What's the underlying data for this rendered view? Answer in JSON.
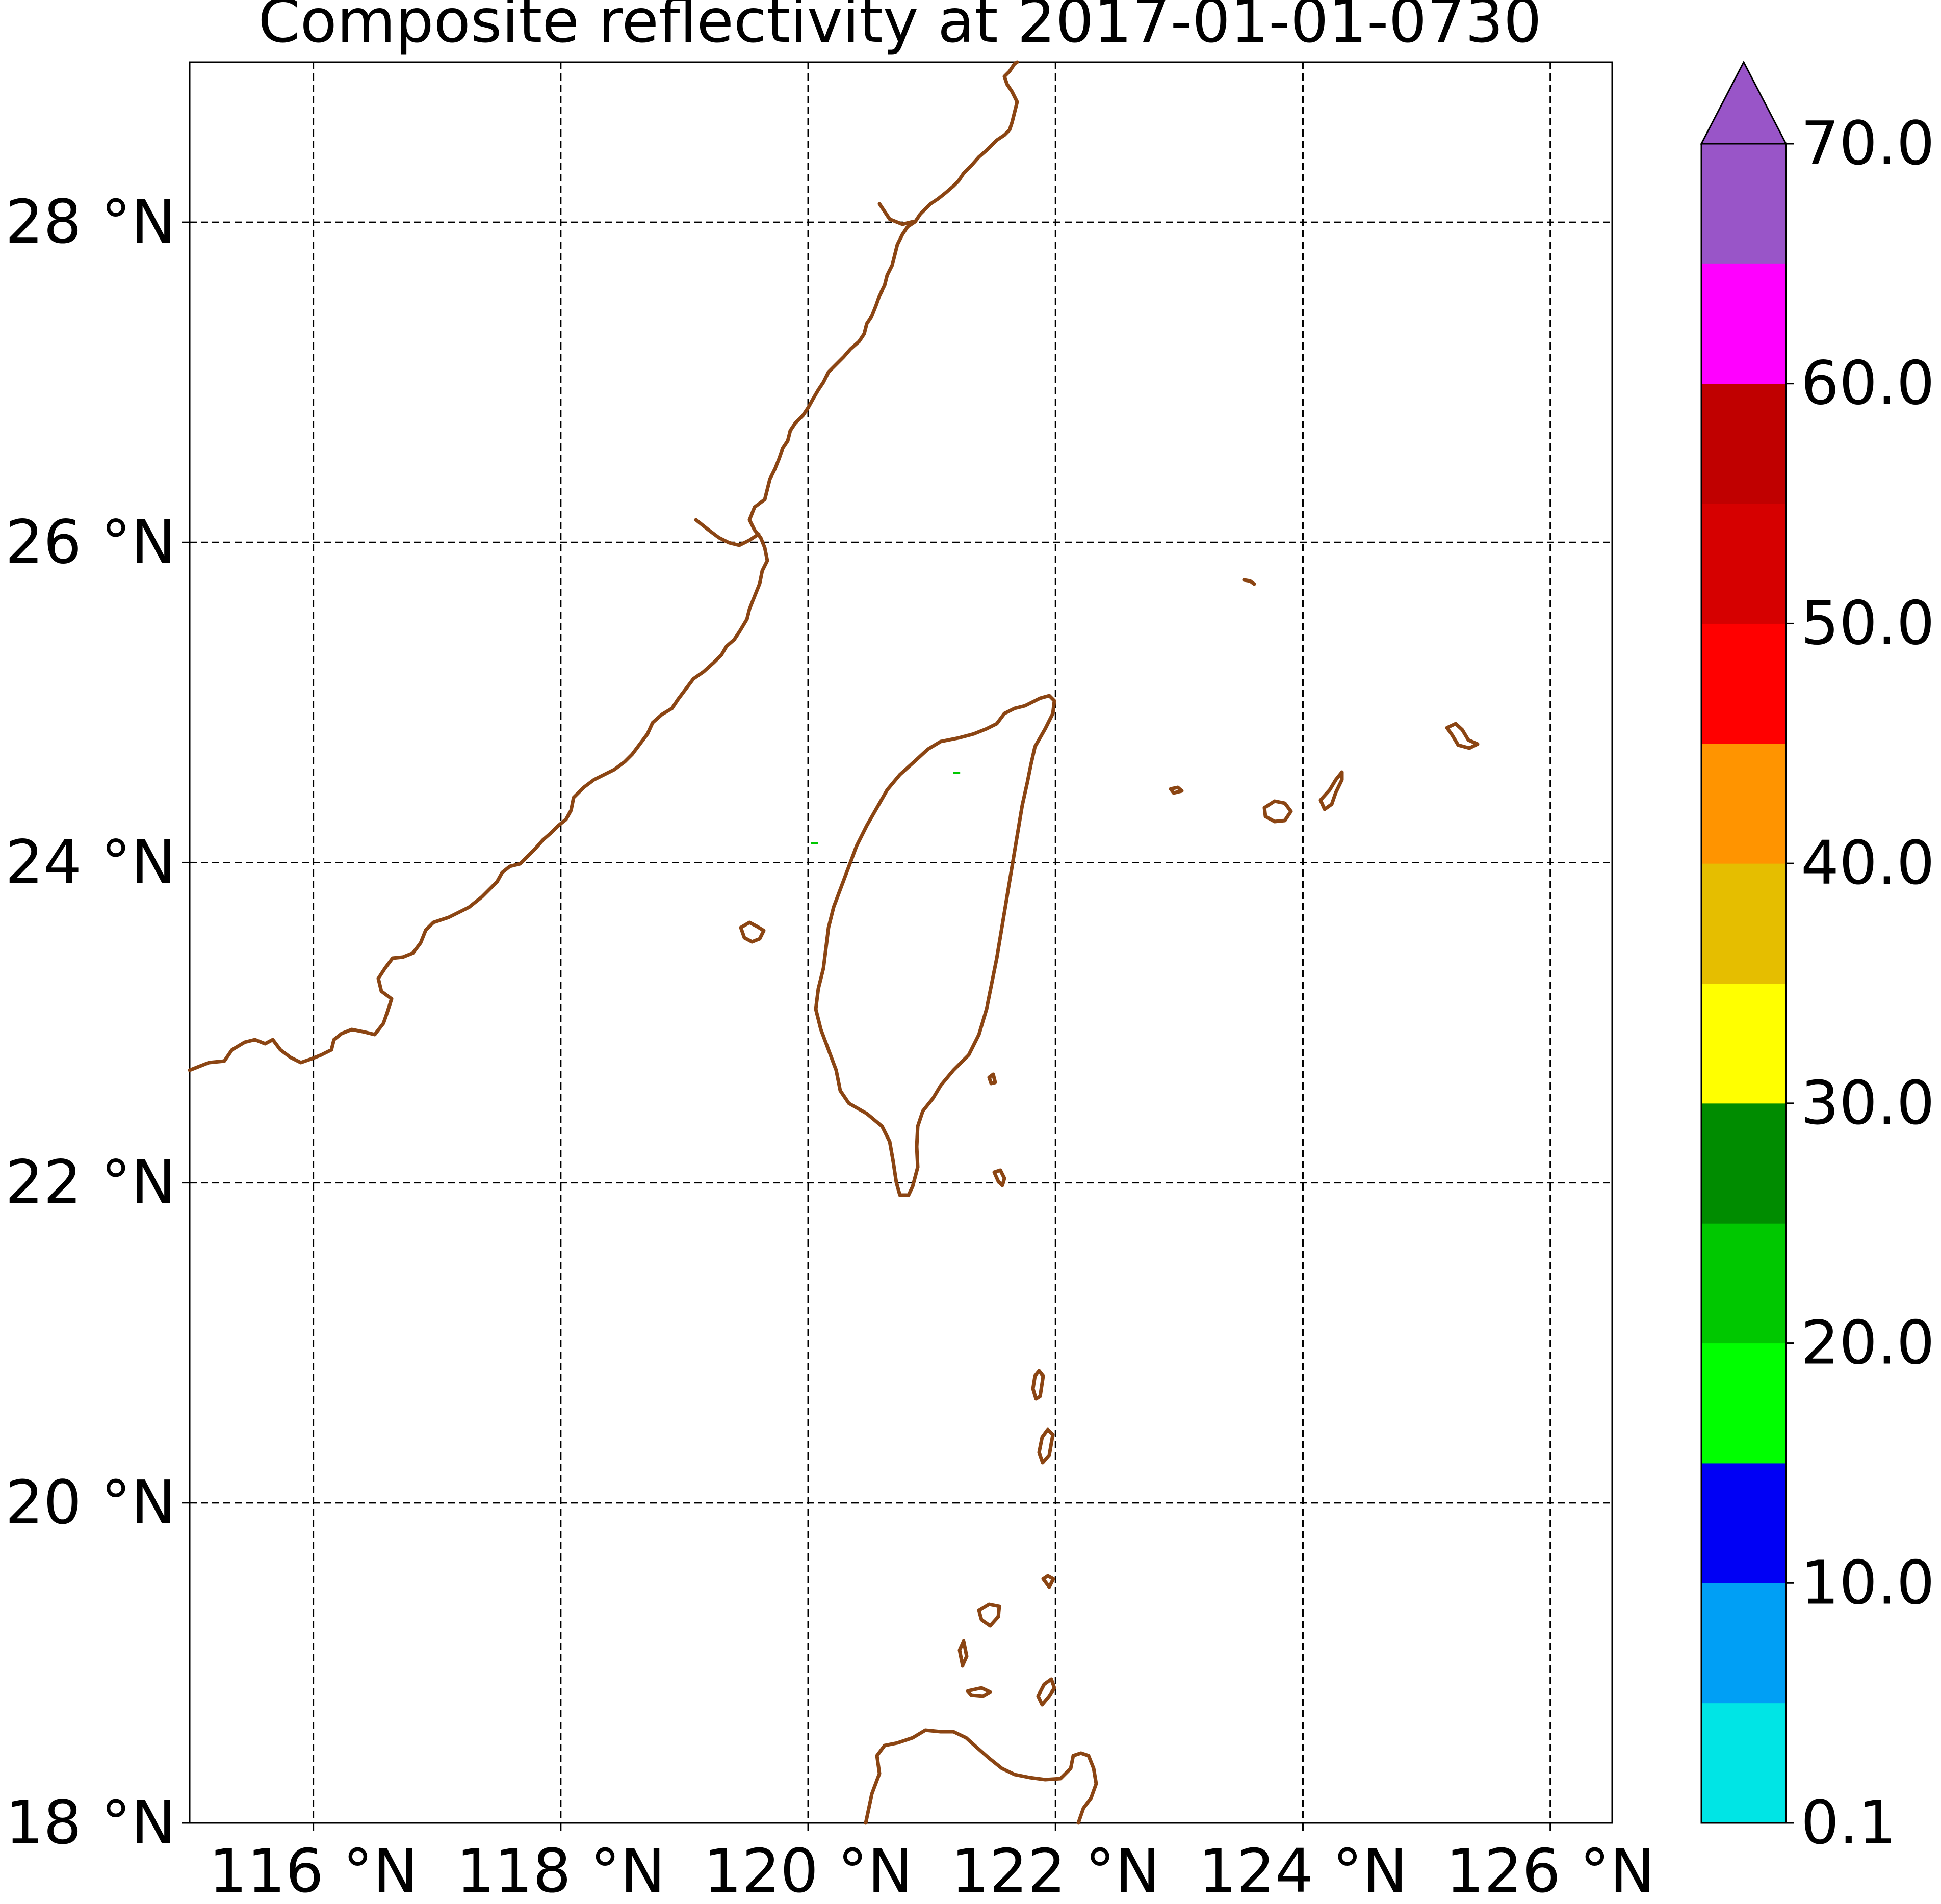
{
  "title": "Composite reflectivity at 2017-01-01-0730",
  "map": {
    "lon_range": [
      115,
      126.5
    ],
    "lat_range": [
      18,
      29
    ],
    "lon_ticks": [
      116,
      118,
      120,
      122,
      124,
      126
    ],
    "lat_ticks": [
      18,
      20,
      22,
      24,
      26,
      28
    ],
    "lon_labels": [
      "116 °N",
      "118 °N",
      "120 °N",
      "122 °N",
      "124 °N",
      "126 °N"
    ],
    "lat_labels": [
      "18 °N",
      "20 °N",
      "22 °N",
      "24 °N",
      "26 °N",
      "28 °N"
    ],
    "gridlines": "dashed",
    "coastline_color": "#8B4513",
    "echoes": [
      {
        "lon": 121.2,
        "lat": 24.56,
        "color": "#00C800"
      },
      {
        "lon": 120.05,
        "lat": 24.12,
        "color": "#00C800"
      }
    ]
  },
  "colorbar": {
    "tick_labels": [
      "0.1",
      "10.0",
      "20.0",
      "30.0",
      "40.0",
      "50.0",
      "60.0",
      "70.0"
    ],
    "colors": [
      "#00E5E5",
      "#009FF5",
      "#0000F5",
      "#00FF00",
      "#00C800",
      "#008C00",
      "#FFFF00",
      "#E5BE00",
      "#FF9400",
      "#FF0000",
      "#D60000",
      "#C00000",
      "#FF00FF",
      "#9955C8"
    ],
    "extend": "max"
  }
}
